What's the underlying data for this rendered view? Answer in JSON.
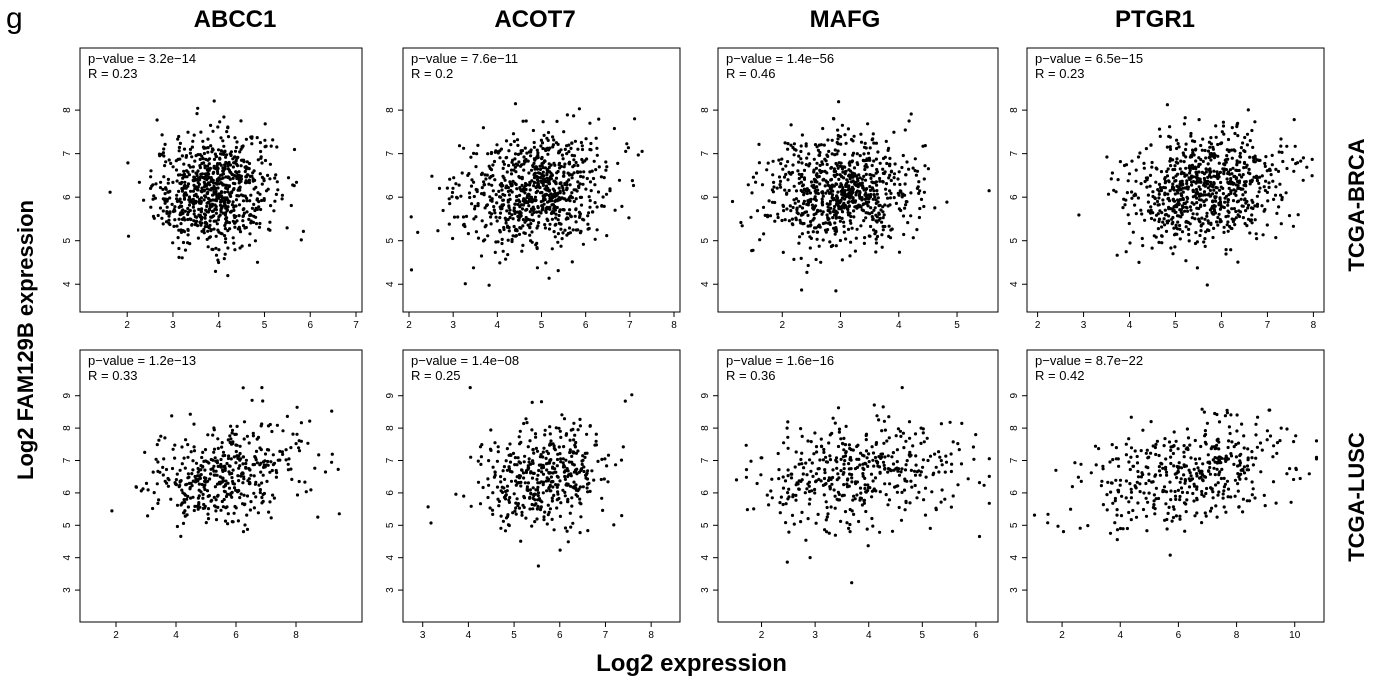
{
  "figure": {
    "panel_letter": "g",
    "columns": [
      "ABCC1",
      "ACOT7",
      "MAFG",
      "PTGR1"
    ],
    "rows": [
      "TCGA-BRCA",
      "TCGA-LUSC"
    ],
    "ylabel": "Log2  FAM129B expression",
    "xlabel": "Log2 expression"
  },
  "chart_data": [
    {
      "type": "scatter",
      "gene": "ABCC1",
      "cohort": "TCGA-BRCA",
      "p_value": "p−value = 3.2e−14",
      "r": "R = 0.23",
      "xlim": [
        1.1,
        7.0
      ],
      "ylim": [
        3.5,
        8.6
      ],
      "xticks": [
        2,
        3,
        4,
        5,
        6,
        7
      ],
      "yticks": [
        4,
        5,
        6,
        7,
        8
      ],
      "center": [
        3.9,
        6.15
      ],
      "spread": [
        0.65,
        0.65
      ],
      "n": 800
    },
    {
      "type": "scatter",
      "gene": "ACOT7",
      "cohort": "TCGA-BRCA",
      "p_value": "p−value = 7.6e−11",
      "r": "R = 0.2",
      "xlim": [
        2.0,
        8.0
      ],
      "ylim": [
        3.5,
        8.6
      ],
      "xticks": [
        2,
        3,
        4,
        5,
        6,
        7,
        8
      ],
      "yticks": [
        4,
        5,
        6,
        7,
        8
      ],
      "center": [
        4.8,
        6.15
      ],
      "spread": [
        0.85,
        0.65
      ],
      "n": 800
    },
    {
      "type": "scatter",
      "gene": "MAFG",
      "cohort": "TCGA-BRCA",
      "p_value": "p−value = 1.4e−56",
      "r": "R = 0.46",
      "xlim": [
        1.0,
        5.6
      ],
      "ylim": [
        3.5,
        8.6
      ],
      "xticks": [
        2,
        3,
        4,
        5
      ],
      "yticks": [
        4,
        5,
        6,
        7,
        8
      ],
      "center": [
        3.0,
        6.1
      ],
      "spread": [
        0.65,
        0.65
      ],
      "n": 800
    },
    {
      "type": "scatter",
      "gene": "PTGR1",
      "cohort": "TCGA-BRCA",
      "p_value": "p−value = 6.5e−15",
      "r": "R = 0.23",
      "xlim": [
        1.9,
        8.1
      ],
      "ylim": [
        3.5,
        8.6
      ],
      "xticks": [
        2,
        3,
        4,
        5,
        6,
        7,
        8
      ],
      "yticks": [
        4,
        5,
        6,
        7,
        8
      ],
      "center": [
        5.6,
        6.15
      ],
      "spread": [
        0.85,
        0.65
      ],
      "n": 800
    },
    {
      "type": "scatter",
      "gene": "ABCC1",
      "cohort": "TCGA-LUSC",
      "p_value": "p−value = 1.2e−13",
      "r": "R = 0.33",
      "xlim": [
        1.0,
        10.0
      ],
      "ylim": [
        2.2,
        9.3
      ],
      "xticks": [
        2,
        4,
        6,
        8
      ],
      "yticks": [
        3,
        4,
        5,
        6,
        7,
        8,
        9
      ],
      "center": [
        5.6,
        6.6
      ],
      "spread": [
        1.3,
        0.8
      ],
      "n": 450
    },
    {
      "type": "scatter",
      "gene": "ACOT7",
      "cohort": "TCGA-LUSC",
      "p_value": "p−value = 1.4e−08",
      "r": "R = 0.25",
      "xlim": [
        2.7,
        8.5
      ],
      "ylim": [
        2.2,
        9.3
      ],
      "xticks": [
        3,
        4,
        5,
        6,
        7,
        8
      ],
      "yticks": [
        3,
        4,
        5,
        6,
        7,
        8,
        9
      ],
      "center": [
        5.6,
        6.6
      ],
      "spread": [
        0.7,
        0.8
      ],
      "n": 450
    },
    {
      "type": "scatter",
      "gene": "MAFG",
      "cohort": "TCGA-LUSC",
      "p_value": "p−value = 1.6e−16",
      "r": "R = 0.36",
      "xlim": [
        1.3,
        6.3
      ],
      "ylim": [
        2.2,
        9.3
      ],
      "xticks": [
        2,
        3,
        4,
        5,
        6
      ],
      "yticks": [
        3,
        4,
        5,
        6,
        7,
        8,
        9
      ],
      "center": [
        3.8,
        6.6
      ],
      "spread": [
        0.9,
        0.8
      ],
      "n": 450
    },
    {
      "type": "scatter",
      "gene": "PTGR1",
      "cohort": "TCGA-LUSC",
      "p_value": "p−value = 8.7e−22",
      "r": "R = 0.42",
      "xlim": [
        1.0,
        10.8
      ],
      "ylim": [
        2.2,
        9.3
      ],
      "xticks": [
        2,
        4,
        6,
        8,
        10
      ],
      "yticks": [
        3,
        4,
        5,
        6,
        7,
        8,
        9
      ],
      "center": [
        6.4,
        6.6
      ],
      "spread": [
        1.8,
        0.8
      ],
      "n": 450
    }
  ]
}
